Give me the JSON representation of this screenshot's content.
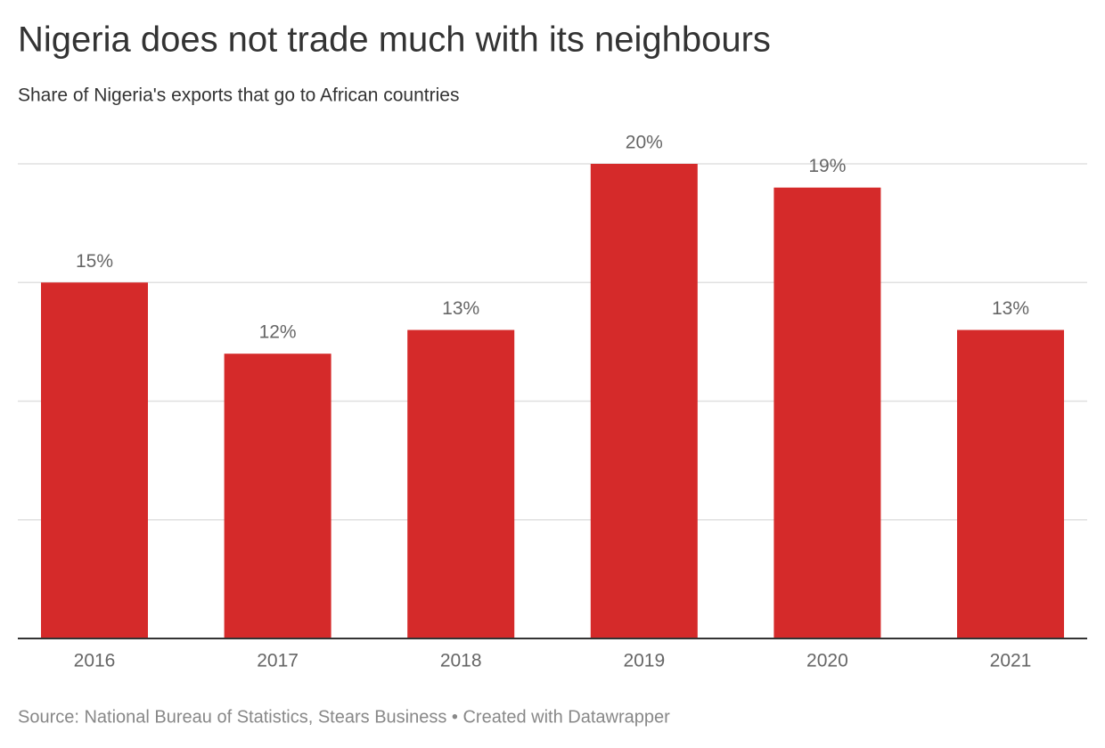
{
  "chart_data": {
    "type": "bar",
    "title": "Nigeria does not trade much with its neighbours",
    "subtitle": "Share of Nigeria's exports that go to African countries",
    "source": "Source: National Bureau of Statistics, Stears Business • Created with Datawrapper",
    "categories": [
      "2016",
      "2017",
      "2018",
      "2019",
      "2020",
      "2021"
    ],
    "values": [
      15,
      12,
      13,
      20,
      19,
      13
    ],
    "value_labels": [
      "15%",
      "12%",
      "13%",
      "20%",
      "19%",
      "13%"
    ],
    "color": "#d52a2a",
    "ylim": [
      0,
      20
    ],
    "yticks": [
      0,
      5,
      10,
      15,
      20
    ],
    "grid": true
  }
}
